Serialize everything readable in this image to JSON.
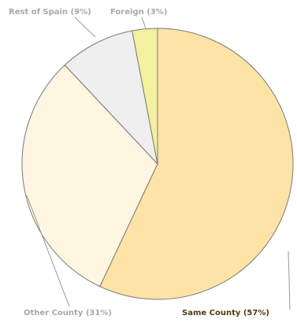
{
  "chart_data": {
    "type": "pie",
    "slices": [
      {
        "label": "Same County (57%)",
        "value": 57,
        "color": "#fde3a6",
        "label_color": "#4a3f12"
      },
      {
        "label": "Other County (31%)",
        "value": 31,
        "color": "#fff6e2",
        "label_color": "#a8a8a8"
      },
      {
        "label": "Rest of Spain (9%)",
        "value": 9,
        "color": "#efefef",
        "label_color": "#a8a8a8"
      },
      {
        "label": "Foreign (3%)",
        "value": 3,
        "color": "#f3f0a0",
        "label_color": "#a8a8a8"
      }
    ]
  }
}
